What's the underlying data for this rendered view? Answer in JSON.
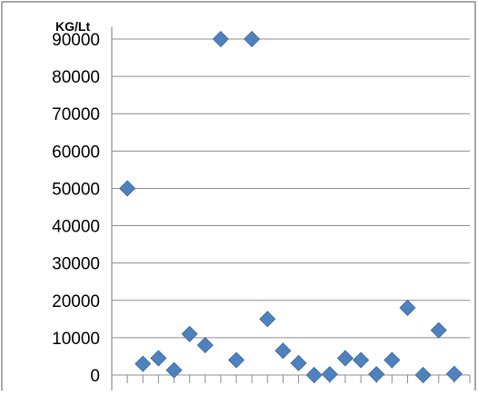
{
  "chart_data": {
    "type": "scatter",
    "title": "",
    "xlabel": "",
    "ylabel": "KG/Lt",
    "ylim": [
      0,
      90000
    ],
    "yticks": [
      0,
      10000,
      20000,
      30000,
      40000,
      50000,
      60000,
      70000,
      80000,
      90000
    ],
    "xlim": [
      0,
      23
    ],
    "grid": true,
    "legend": "none",
    "marker_color": "#4F81BD",
    "series": [
      {
        "x": [
          1,
          2,
          3,
          4,
          5,
          6,
          7,
          8,
          9,
          10,
          11,
          12,
          13,
          14,
          15,
          16,
          17,
          18,
          19,
          20,
          21,
          22
        ],
        "y": [
          50000,
          3000,
          4500,
          1300,
          11000,
          8000,
          90000,
          4000,
          90000,
          15000,
          6500,
          3200,
          0,
          200,
          4500,
          4000,
          200,
          4000,
          18000,
          0,
          12000,
          300
        ]
      }
    ]
  }
}
